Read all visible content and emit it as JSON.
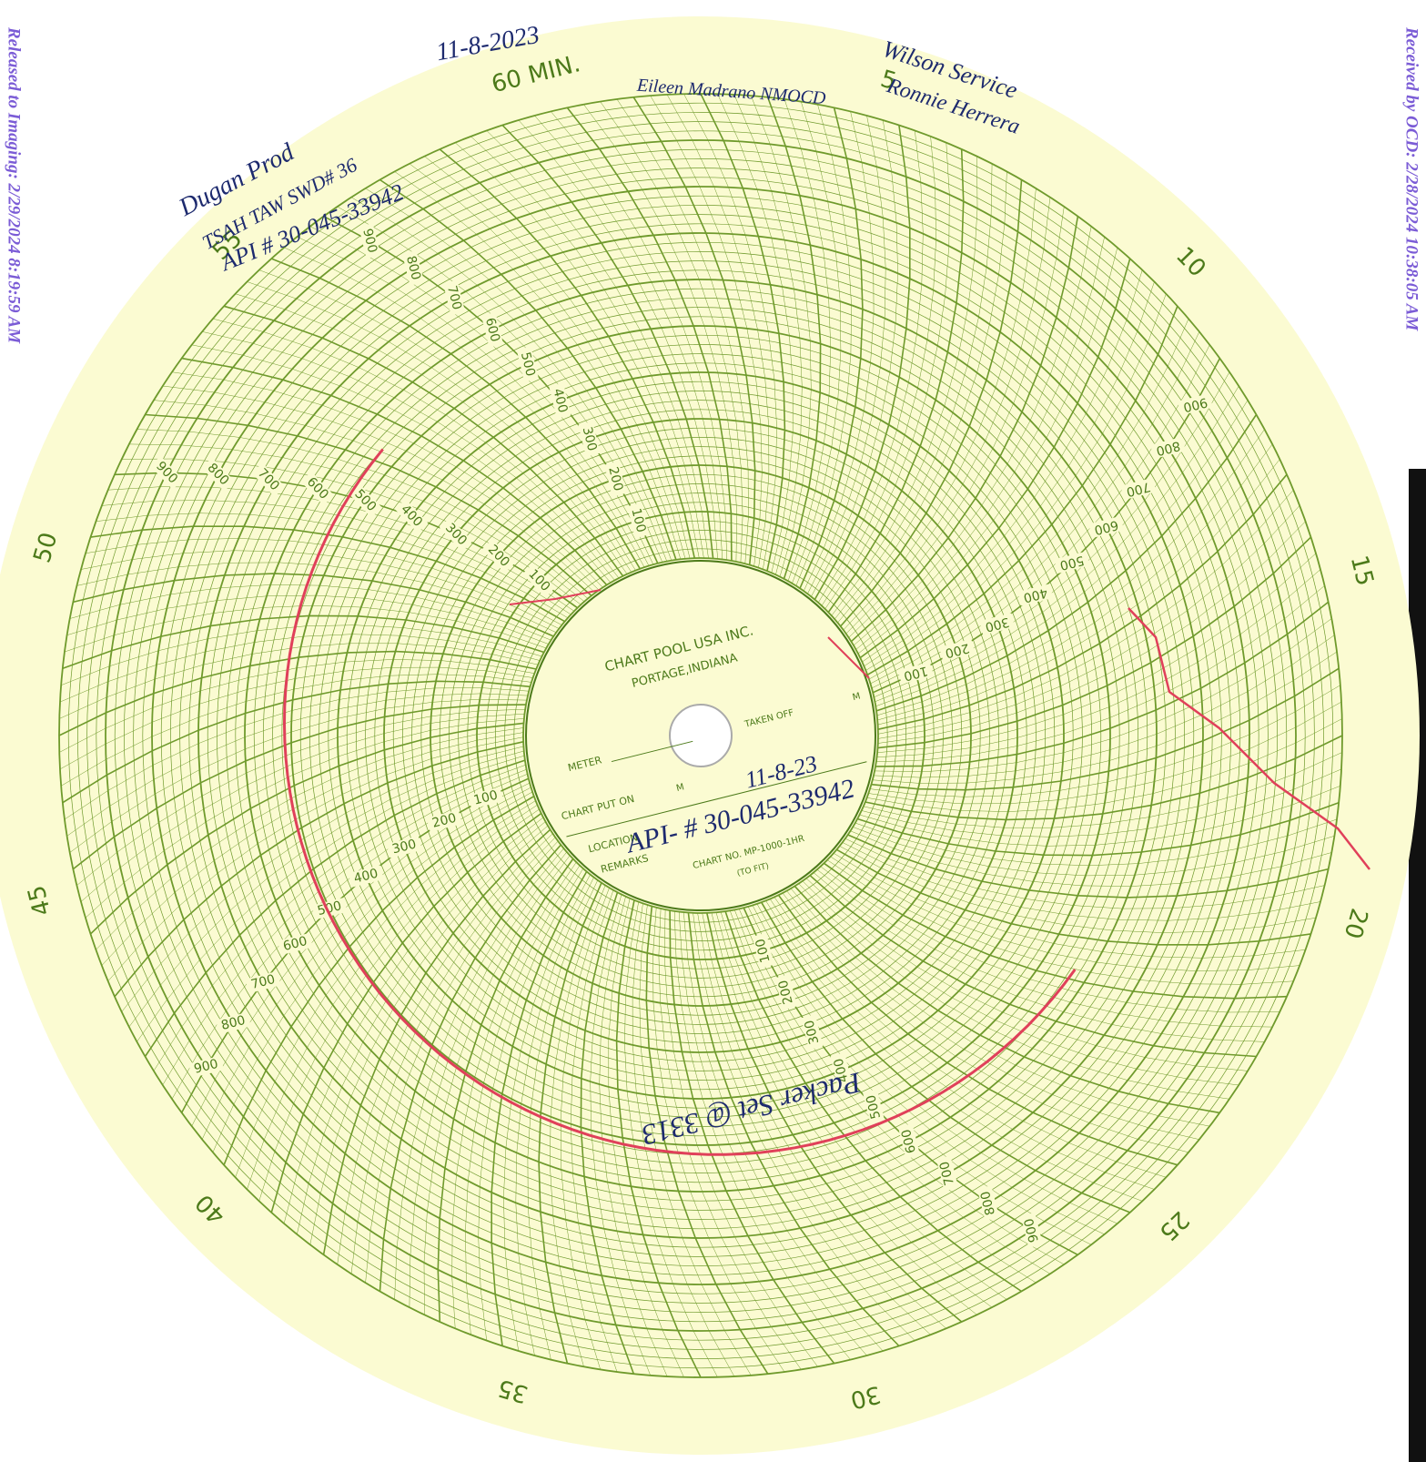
{
  "stamps": {
    "left": "Released to Imaging: 2/29/2024 8:19:59 AM",
    "right": "Received by OCD: 2/28/2024 10:38:05 AM"
  },
  "chart": {
    "minute_labels": [
      "60 MIN.",
      "5",
      "10",
      "15",
      "20",
      "25",
      "30",
      "35",
      "40",
      "45",
      "50",
      "55"
    ],
    "ring_labels": [
      100,
      200,
      300,
      400,
      500,
      600,
      700,
      800,
      900
    ],
    "center": {
      "company": "CHART POOL USA INC.",
      "city": "PORTAGE,INDIANA",
      "meter": "METER",
      "taken_off": "TAKEN OFF",
      "taken_off_unit": "M",
      "put_on": "CHART PUT ON",
      "put_on_unit": "M",
      "location": "LOCATION",
      "remarks": "REMARKS",
      "chart_no": "CHART NO. MP-1000-1HR",
      "to_fit": "(TO FIT)"
    }
  },
  "handwriting": {
    "operator": "Dugan Prod",
    "well": "TSAH TAW SWD# 36",
    "api": "API # 30-045-33942",
    "date": "11-8-2023",
    "witness": "Eileen Madrano NMOCD",
    "service": "Wilson Service",
    "technician": "Ronnie Herrera",
    "taken_off_date": "11-8-23",
    "center_api": "API- # 30-045-33942",
    "packer_note": "Packer Set @ 3313"
  }
}
